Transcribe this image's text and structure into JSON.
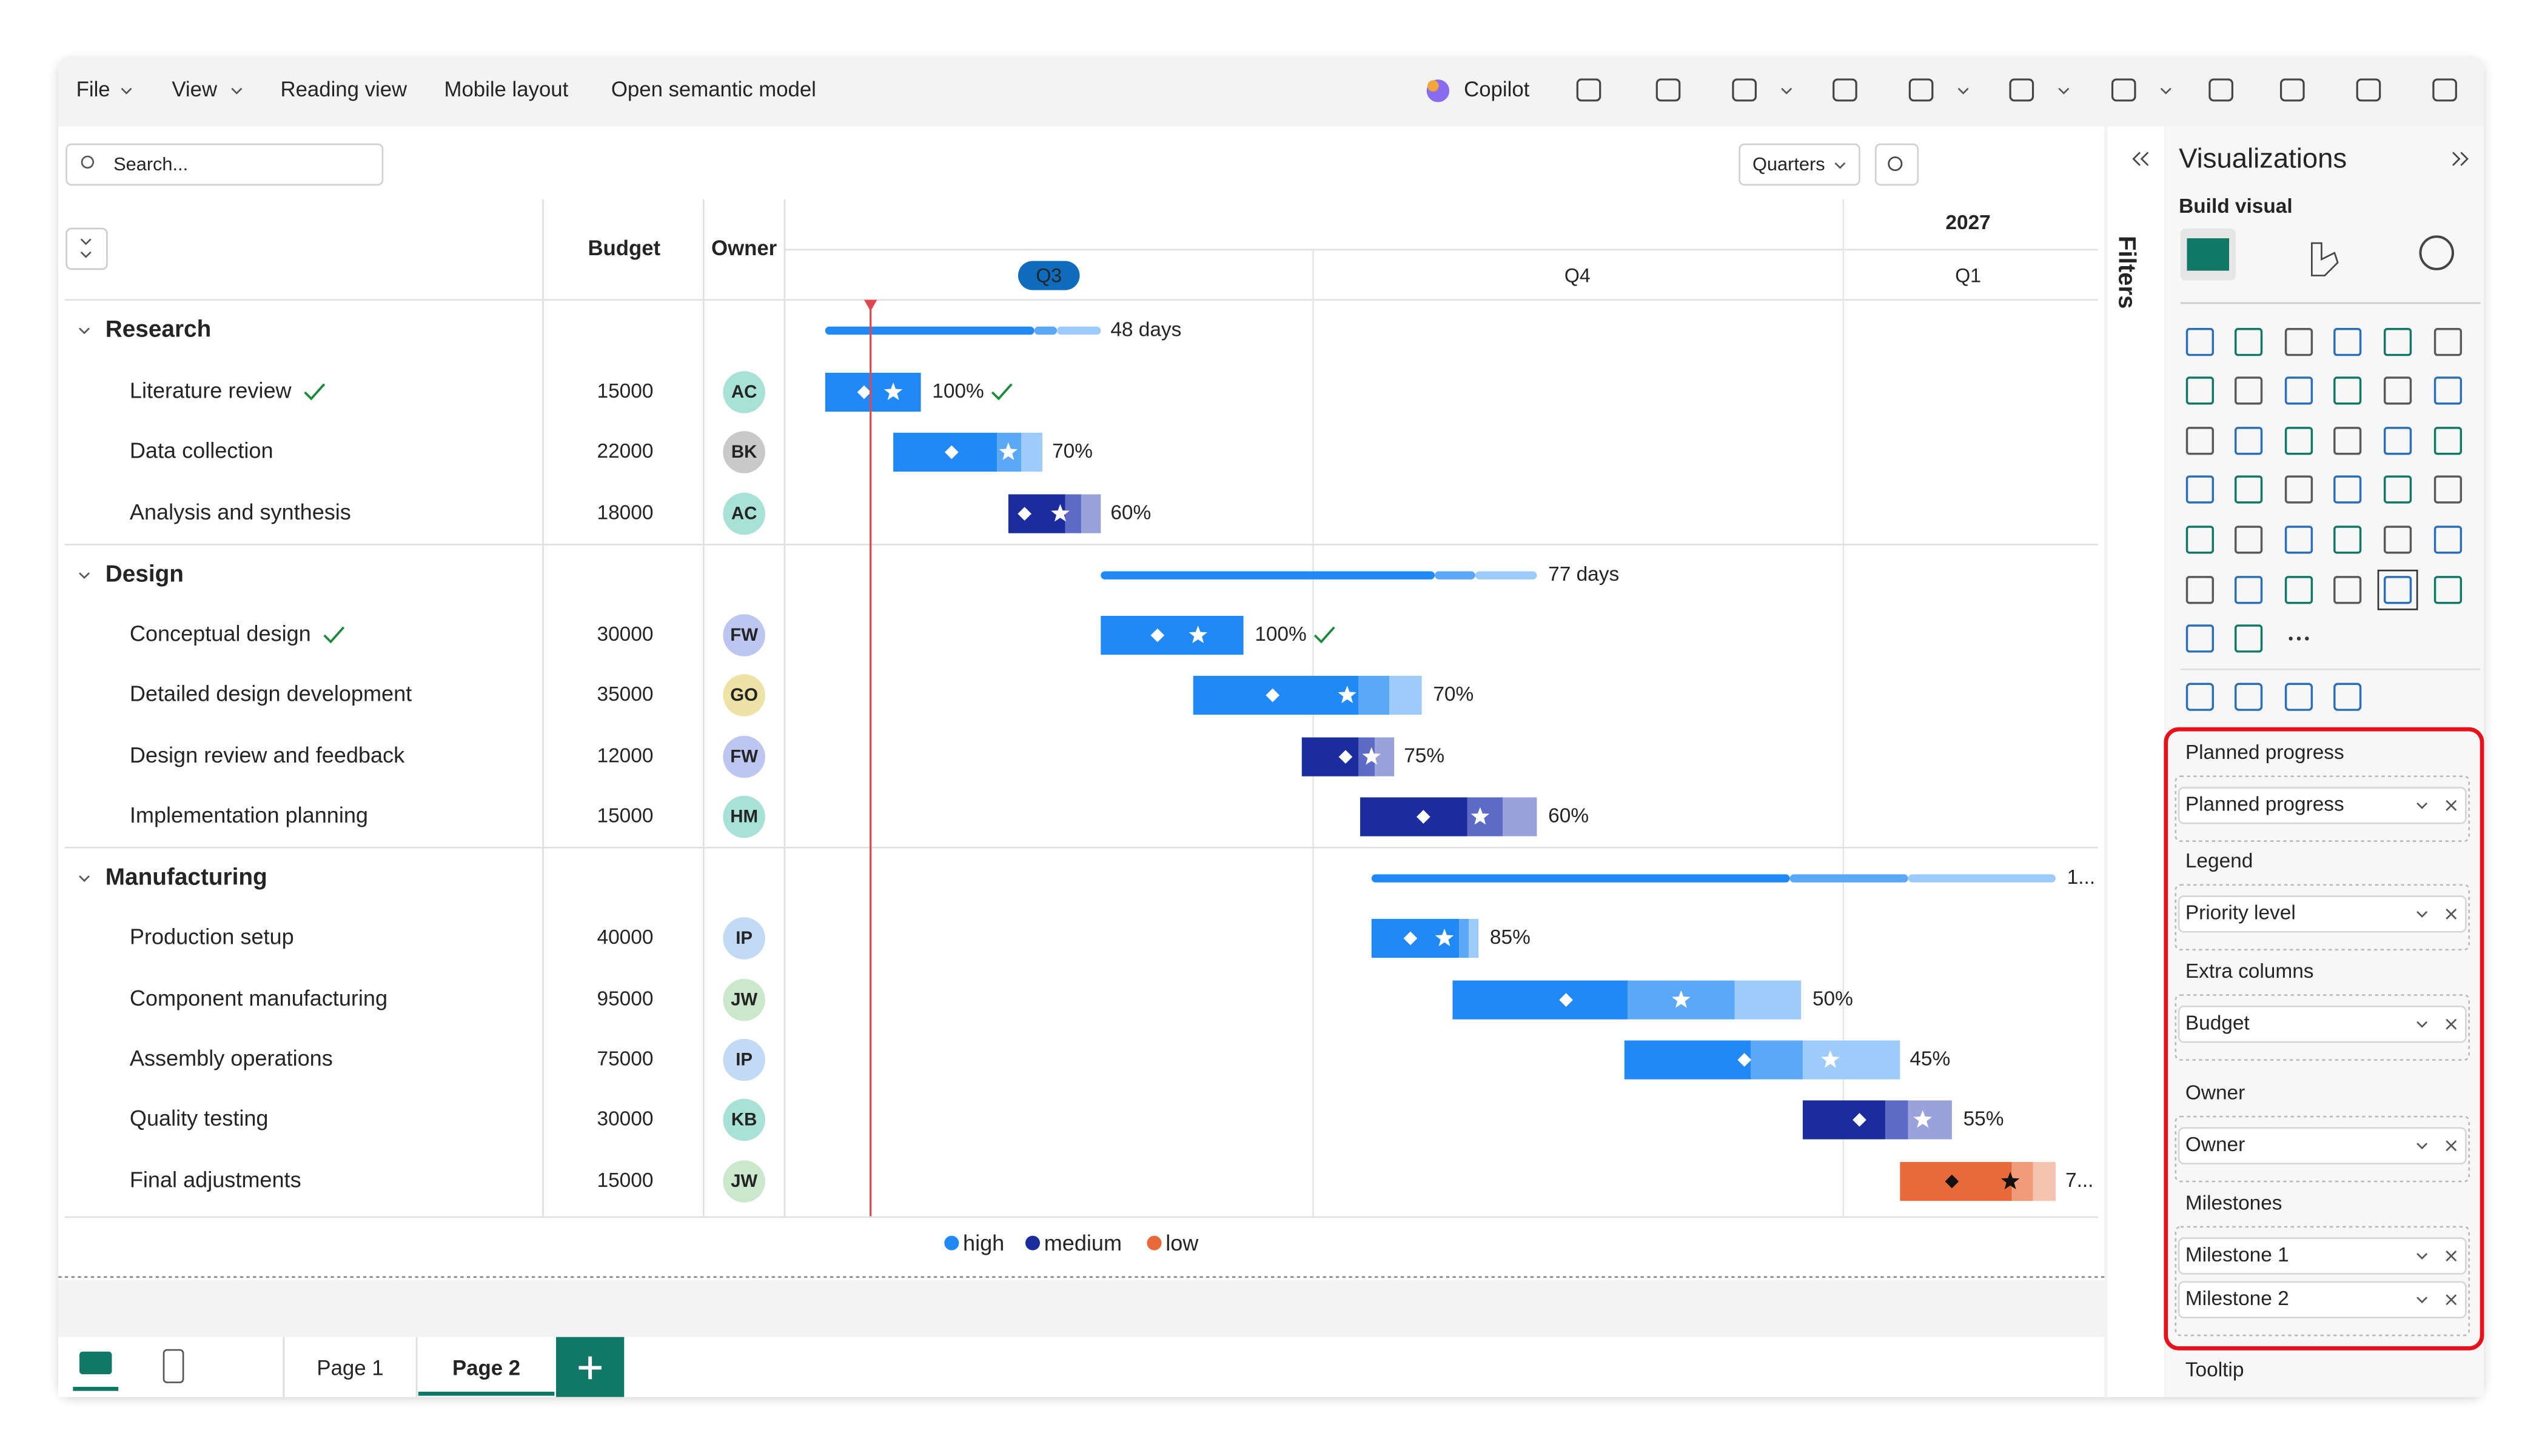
{
  "menu": [
    "File",
    "View",
    "Reading view",
    "Mobile layout",
    "Open semantic model"
  ],
  "toolbar": {
    "copilot": "Copilot"
  },
  "search_placeholder": "Search...",
  "timescale": "Quarters",
  "header": {
    "budget": "Budget",
    "owner": "Owner",
    "year": "2027",
    "quarters": [
      "Q3",
      "Q4",
      "Q1"
    ]
  },
  "groups": [
    {
      "name": "Research",
      "summary": "48 days",
      "tasks": [
        {
          "name": "Literature review",
          "budget": 15000,
          "owner": "AC",
          "progress": "100%"
        },
        {
          "name": "Data collection",
          "budget": 22000,
          "owner": "BK",
          "progress": "70%"
        },
        {
          "name": "Analysis and synthesis",
          "budget": 18000,
          "owner": "AC",
          "progress": "60%"
        }
      ]
    },
    {
      "name": "Design",
      "summary": "77 days",
      "tasks": [
        {
          "name": "Conceptual design",
          "budget": 30000,
          "owner": "FW",
          "progress": "100%"
        },
        {
          "name": "Detailed design development",
          "budget": 35000,
          "owner": "GO",
          "progress": "70%"
        },
        {
          "name": "Design review and feedback",
          "budget": 12000,
          "owner": "FW",
          "progress": "75%"
        },
        {
          "name": "Implementation planning",
          "budget": 15000,
          "owner": "HM",
          "progress": "60%"
        }
      ]
    },
    {
      "name": "Manufacturing",
      "summary": "1...",
      "tasks": [
        {
          "name": "Production setup",
          "budget": 40000,
          "owner": "IP",
          "progress": "85%"
        },
        {
          "name": "Component manufacturing",
          "budget": 95000,
          "owner": "JW",
          "progress": "50%"
        },
        {
          "name": "Assembly operations",
          "budget": 75000,
          "owner": "IP",
          "progress": "45%"
        },
        {
          "name": "Quality testing",
          "budget": 30000,
          "owner": "KB",
          "progress": "55%"
        },
        {
          "name": "Final adjustments",
          "budget": 15000,
          "owner": "JW",
          "progress": "7..."
        }
      ]
    }
  ],
  "legend": [
    "high",
    "medium",
    "low"
  ],
  "pages": [
    "Page 1",
    "Page 2"
  ],
  "pane": {
    "filters": "Filters",
    "title": "Visualizations",
    "subtitle": "Build visual",
    "wells": [
      {
        "label": "Planned progress",
        "fields": [
          "Planned progress"
        ]
      },
      {
        "label": "Legend",
        "fields": [
          "Priority level"
        ]
      },
      {
        "label": "Extra columns",
        "fields": [
          "Budget"
        ]
      },
      {
        "label": "Owner",
        "fields": [
          "Owner"
        ]
      },
      {
        "label": "Milestones",
        "fields": [
          "Milestone 1",
          "Milestone 2"
        ]
      }
    ],
    "more": "Tooltip"
  }
}
